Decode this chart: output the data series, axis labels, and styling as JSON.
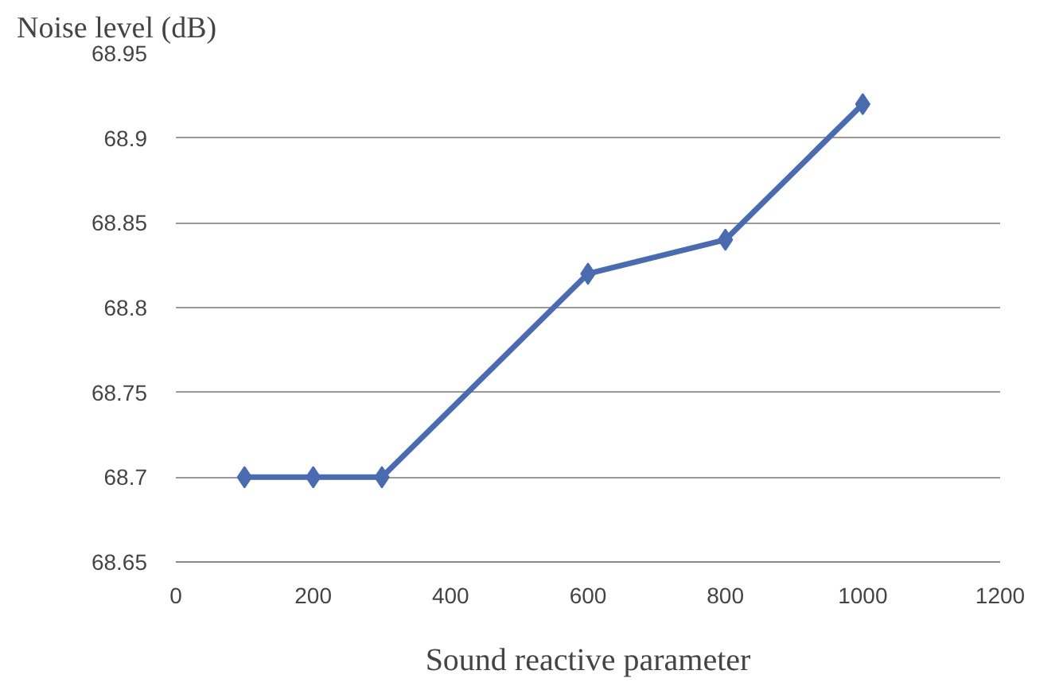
{
  "chart_data": {
    "type": "line",
    "ylabel": "Noise level (dB)",
    "xlabel": "Sound reactive parameter",
    "x": [
      100,
      200,
      300,
      600,
      800,
      1000
    ],
    "series": [
      {
        "color": "#4a6bb0",
        "values": [
          68.7,
          68.7,
          68.7,
          68.82,
          68.84,
          68.92
        ]
      }
    ],
    "xlim": [
      0,
      1200
    ],
    "xticks": [
      0,
      200,
      400,
      600,
      800,
      1000,
      1200
    ],
    "ylim": [
      68.65,
      68.95
    ],
    "yticks": [
      68.65,
      68.7,
      68.75,
      68.8,
      68.85,
      68.9,
      68.95
    ],
    "grid": "y",
    "marker": "diamond",
    "line_style": "solid"
  }
}
